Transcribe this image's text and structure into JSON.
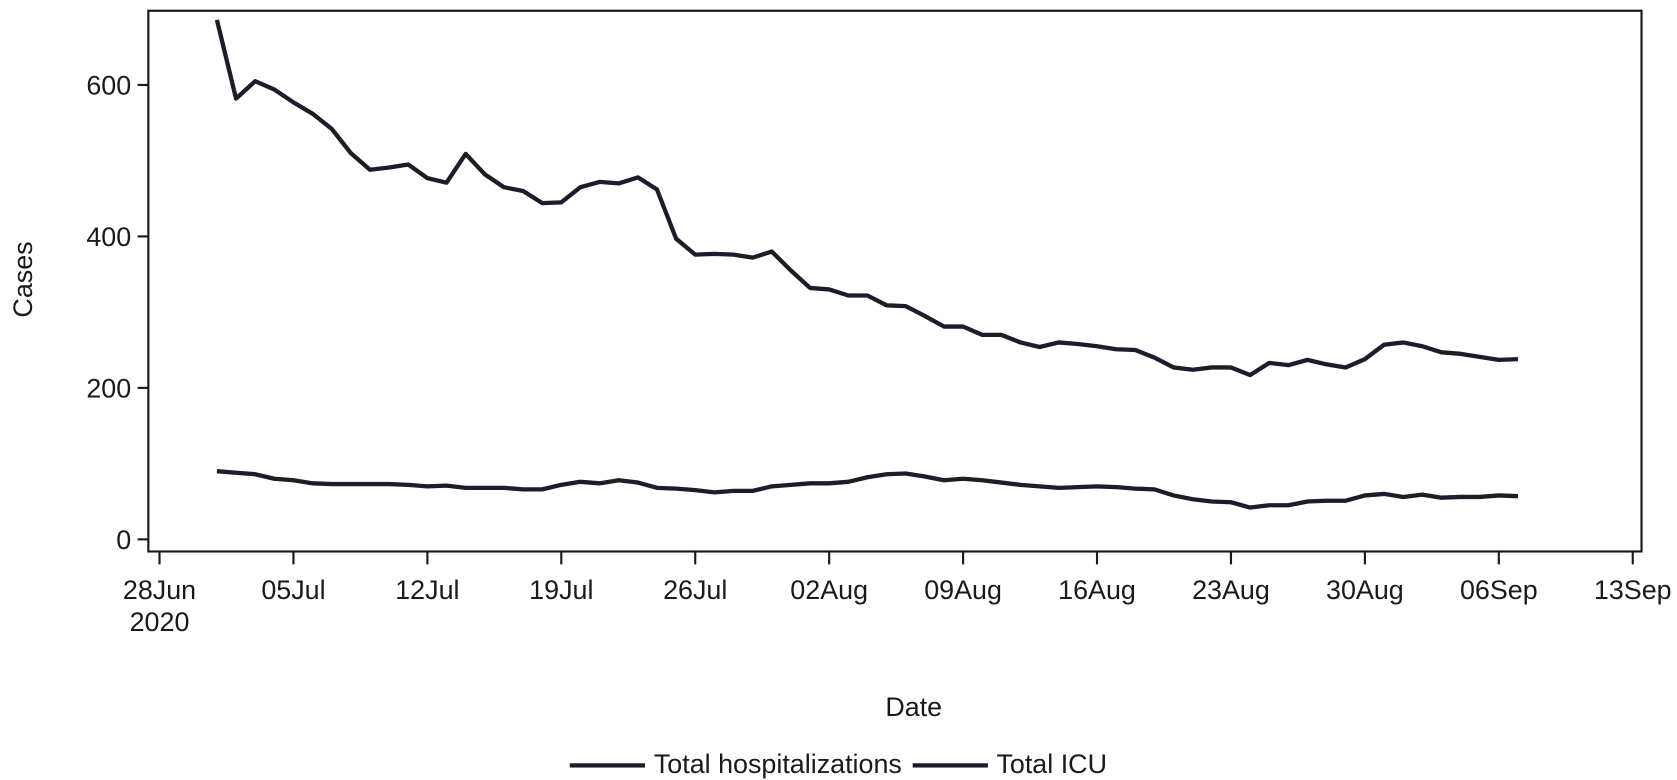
{
  "chart_data": {
    "type": "line",
    "xlabel": "Date",
    "ylabel": "Cases",
    "x": [
      "2020-07-01",
      "2020-07-02",
      "2020-07-03",
      "2020-07-04",
      "2020-07-05",
      "2020-07-06",
      "2020-07-07",
      "2020-07-08",
      "2020-07-09",
      "2020-07-10",
      "2020-07-11",
      "2020-07-12",
      "2020-07-13",
      "2020-07-14",
      "2020-07-15",
      "2020-07-16",
      "2020-07-17",
      "2020-07-18",
      "2020-07-19",
      "2020-07-20",
      "2020-07-21",
      "2020-07-22",
      "2020-07-23",
      "2020-07-24",
      "2020-07-25",
      "2020-07-26",
      "2020-07-27",
      "2020-07-28",
      "2020-07-29",
      "2020-07-30",
      "2020-07-31",
      "2020-08-01",
      "2020-08-02",
      "2020-08-03",
      "2020-08-04",
      "2020-08-05",
      "2020-08-06",
      "2020-08-07",
      "2020-08-08",
      "2020-08-09",
      "2020-08-10",
      "2020-08-11",
      "2020-08-12",
      "2020-08-13",
      "2020-08-14",
      "2020-08-15",
      "2020-08-16",
      "2020-08-17",
      "2020-08-18",
      "2020-08-19",
      "2020-08-20",
      "2020-08-21",
      "2020-08-22",
      "2020-08-23",
      "2020-08-24",
      "2020-08-25",
      "2020-08-26",
      "2020-08-27",
      "2020-08-28",
      "2020-08-29",
      "2020-08-30",
      "2020-08-31",
      "2020-09-01",
      "2020-09-02",
      "2020-09-03",
      "2020-09-04",
      "2020-09-05",
      "2020-09-06",
      "2020-09-07"
    ],
    "series": [
      {
        "name": "Total hospitalizations",
        "color": "#1c1c2a",
        "values": [
          686,
          582,
          605,
          594,
          577,
          562,
          542,
          510,
          488,
          491,
          495,
          477,
          471,
          509,
          482,
          465,
          460,
          444,
          445,
          465,
          472,
          470,
          478,
          462,
          397,
          376,
          377,
          376,
          372,
          380,
          355,
          332,
          330,
          322,
          322,
          309,
          308,
          295,
          281,
          281,
          270,
          270,
          260,
          254,
          260,
          258,
          255,
          251,
          250,
          240,
          227,
          224,
          227,
          227,
          217,
          233,
          230,
          237,
          231,
          227,
          238,
          257,
          260,
          255,
          247,
          245,
          241,
          237,
          238
        ]
      },
      {
        "name": "Total ICU",
        "color": "#1c1c2a",
        "values": [
          90,
          88,
          86,
          80,
          78,
          74,
          73,
          73,
          73,
          73,
          72,
          70,
          71,
          68,
          68,
          68,
          66,
          66,
          72,
          76,
          74,
          78,
          75,
          68,
          67,
          65,
          62,
          64,
          64,
          70,
          72,
          74,
          74,
          76,
          82,
          86,
          87,
          83,
          78,
          80,
          78,
          75,
          72,
          70,
          68,
          69,
          70,
          69,
          67,
          66,
          58,
          53,
          50,
          49,
          42,
          45,
          45,
          50,
          51,
          51,
          58,
          60,
          56,
          59,
          55,
          56,
          56,
          58,
          57
        ]
      }
    ],
    "xlim": [
      "2020-06-27T10:00",
      "2020-09-13T11:00"
    ],
    "xticks": [
      {
        "value": "2020-06-28",
        "label": "28Jun\n2020"
      },
      {
        "value": "2020-07-05",
        "label": "05Jul"
      },
      {
        "value": "2020-07-12",
        "label": "12Jul"
      },
      {
        "value": "2020-07-19",
        "label": "19Jul"
      },
      {
        "value": "2020-07-26",
        "label": "26Jul"
      },
      {
        "value": "2020-08-02",
        "label": "02Aug"
      },
      {
        "value": "2020-08-09",
        "label": "09Aug"
      },
      {
        "value": "2020-08-16",
        "label": "16Aug"
      },
      {
        "value": "2020-08-23",
        "label": "23Aug"
      },
      {
        "value": "2020-08-30",
        "label": "30Aug"
      },
      {
        "value": "2020-09-06",
        "label": "06Sep"
      },
      {
        "value": "2020-09-13",
        "label": "13Sep"
      }
    ],
    "ylim": [
      -16,
      698
    ],
    "yticks": [
      0,
      200,
      400,
      600
    ],
    "legend": "bottom"
  }
}
